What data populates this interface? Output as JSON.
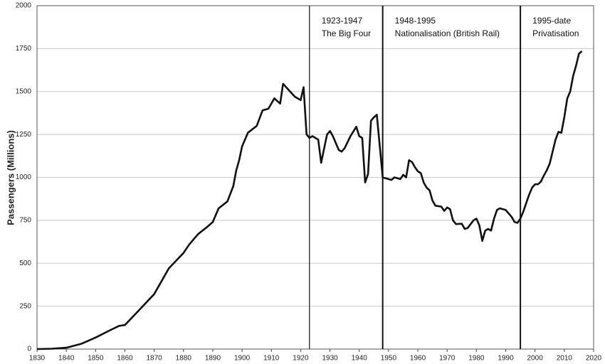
{
  "chart_data": {
    "type": "line",
    "y_axis_label": "Passengers (Millions)",
    "x": [
      1830,
      1835,
      1840,
      1845,
      1850,
      1855,
      1858,
      1860,
      1865,
      1870,
      1875,
      1880,
      1882,
      1885,
      1888,
      1890,
      1892,
      1895,
      1897,
      1898,
      1899,
      1900,
      1902,
      1905,
      1907,
      1909,
      1911,
      1913,
      1914,
      1918,
      1920,
      1921,
      1922,
      1923,
      1924,
      1926,
      1927,
      1929,
      1930,
      1931,
      1933,
      1934,
      1935,
      1937,
      1939,
      1940,
      1941,
      1942,
      1943,
      1944,
      1945,
      1946,
      1948,
      1949,
      1950,
      1951,
      1952,
      1954,
      1955,
      1956,
      1957,
      1958,
      1959,
      1960,
      1961,
      1962,
      1963,
      1964,
      1965,
      1966,
      1968,
      1969,
      1970,
      1971,
      1972,
      1973,
      1975,
      1976,
      1977,
      1979,
      1980,
      1981,
      1982,
      1983,
      1984,
      1985,
      1986,
      1987,
      1988,
      1990,
      1991,
      1992,
      1993,
      1994,
      1995,
      1996,
      1997,
      1998,
      1999,
      2000,
      2001,
      2002,
      2003,
      2004,
      2005,
      2006,
      2007,
      2008,
      2009,
      2010,
      2011,
      2012,
      2013,
      2014,
      2015,
      2016
    ],
    "series": [
      {
        "color": "#111111",
        "values": [
          0,
          2,
          8,
          30,
          67,
          110,
          135,
          140,
          230,
          320,
          470,
          560,
          610,
          670,
          710,
          740,
          820,
          860,
          950,
          1040,
          1100,
          1180,
          1260,
          1300,
          1390,
          1400,
          1460,
          1430,
          1545,
          1470,
          1450,
          1525,
          1250,
          1230,
          1240,
          1220,
          1085,
          1250,
          1270,
          1240,
          1160,
          1150,
          1170,
          1240,
          1295,
          1240,
          1230,
          970,
          1020,
          1330,
          1350,
          1365,
          1000,
          995,
          990,
          985,
          1000,
          990,
          1015,
          1000,
          1100,
          1090,
          1060,
          1035,
          1025,
          970,
          940,
          925,
          865,
          835,
          830,
          805,
          825,
          815,
          750,
          728,
          730,
          700,
          705,
          750,
          760,
          720,
          630,
          690,
          700,
          690,
          760,
          810,
          820,
          810,
          790,
          770,
          740,
          735,
          760,
          800,
          850,
          900,
          940,
          960,
          960,
          975,
          1010,
          1040,
          1080,
          1150,
          1220,
          1265,
          1260,
          1350,
          1460,
          1500,
          1590,
          1650,
          1720,
          1735
        ]
      }
    ],
    "periods": [
      {
        "x": 1923,
        "label": [
          "1923-1947",
          "The Big Four"
        ]
      },
      {
        "x": 1948,
        "label": [
          "1948-1995",
          "Nationalisation (British Rail)"
        ]
      },
      {
        "x": 1995,
        "label": [
          "1995-date",
          "Privatisation"
        ]
      }
    ],
    "xlim": [
      1830,
      2020
    ],
    "xticks": [
      1830,
      1840,
      1850,
      1860,
      1870,
      1880,
      1890,
      1900,
      1910,
      1920,
      1930,
      1940,
      1950,
      1960,
      1970,
      1980,
      1990,
      2000,
      2010,
      2020
    ],
    "ylim": [
      0,
      2000
    ],
    "yticks": [
      0,
      250,
      500,
      750,
      1000,
      1250,
      1500,
      1750,
      2000
    ],
    "grid": true
  }
}
